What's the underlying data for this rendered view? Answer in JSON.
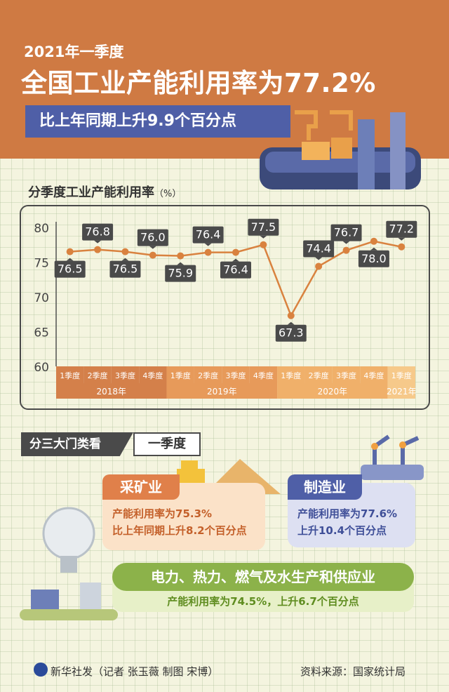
{
  "header": {
    "subtitle": "2021年一季度",
    "title": "全国工业产能利用率为77.2%",
    "ribbon": "比上年同期上升9.9个百分点"
  },
  "chart_title": {
    "text": "分季度工业产能利用率",
    "unit": "（%）"
  },
  "chart_data": {
    "type": "line",
    "title": "分季度工业产能利用率（%）",
    "categories": [
      "1季度",
      "2季度",
      "3季度",
      "4季度",
      "1季度",
      "2季度",
      "3季度",
      "4季度",
      "1季度",
      "2季度",
      "3季度",
      "4季度",
      "1季度"
    ],
    "years": [
      {
        "label": "2018年",
        "span": 4,
        "color": "#d4804a"
      },
      {
        "label": "2019年",
        "span": 4,
        "color": "#e79a5a"
      },
      {
        "label": "2020年",
        "span": 4,
        "color": "#f0b06a"
      },
      {
        "label": "2021年",
        "span": 1,
        "color": "#f6c98a"
      }
    ],
    "values": [
      76.5,
      76.8,
      76.5,
      76.0,
      75.9,
      76.4,
      76.4,
      77.5,
      67.3,
      74.4,
      76.7,
      78.0,
      77.2
    ],
    "label_pos": [
      "below",
      "above",
      "below",
      "above",
      "below",
      "above",
      "below",
      "above",
      "below",
      "above",
      "above",
      "below",
      "above"
    ],
    "yticks": [
      60,
      65,
      70,
      75,
      80
    ],
    "ylim": [
      60,
      80
    ],
    "line_color": "#d9823f"
  },
  "sections": {
    "tag": "分三大门类看",
    "period": "一季度",
    "mining": {
      "name": "采矿业",
      "line1": "产能利用率为75.3%",
      "line2": "比上年同期上升8.2个百分点"
    },
    "manufacturing": {
      "name": "制造业",
      "line1": "产能利用率为77.6%",
      "line2": "上升10.4个百分点"
    },
    "utilities": {
      "name": "电力、热力、燃气及水生产和供应业",
      "line1": "产能利用率为74.5%，上升6.7个百分点"
    }
  },
  "footer": {
    "left": "新华社发（记者 张玉薇  制图 宋博）",
    "right": "资料来源：国家统计局"
  }
}
